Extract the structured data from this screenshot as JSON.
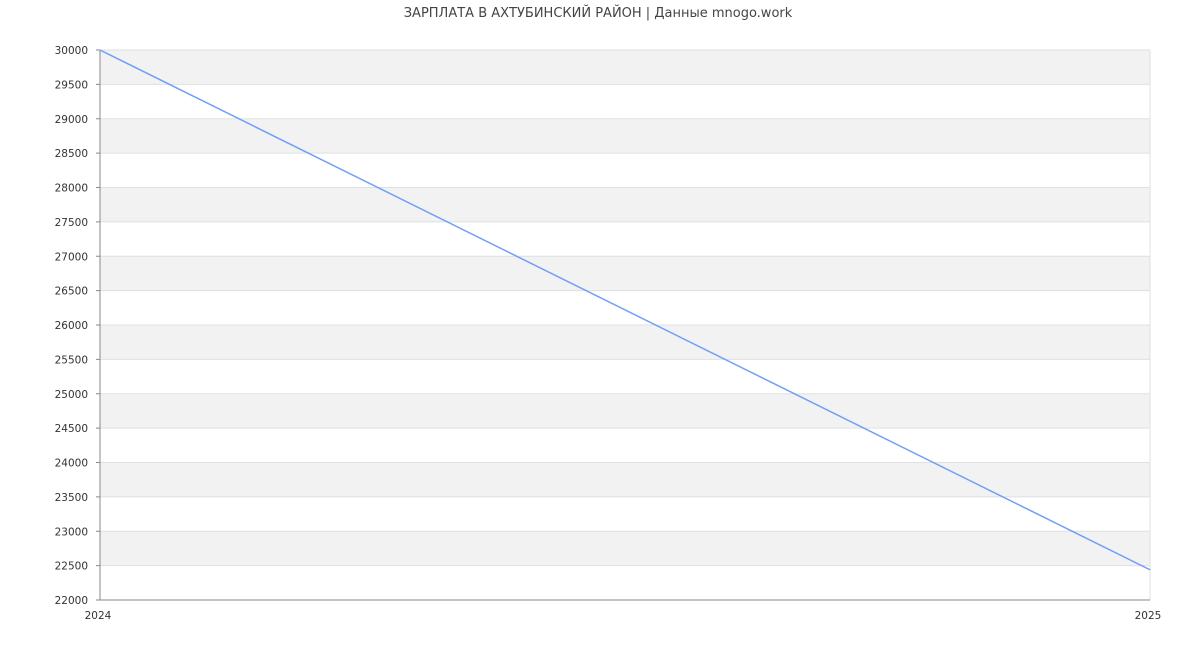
{
  "chart_data": {
    "type": "line",
    "title": "ЗАРПЛАТА В АХТУБИНСКИЙ РАЙОН | Данные mnogo.work",
    "xlabel": "",
    "ylabel": "",
    "x": [
      2024,
      2025
    ],
    "x_tick_labels": [
      "2024",
      "2025"
    ],
    "series": [
      {
        "values": [
          30000,
          22440
        ]
      }
    ],
    "ylim": [
      22000,
      30000
    ],
    "y_ticks": [
      22000,
      22500,
      23000,
      23500,
      24000,
      24500,
      25000,
      25500,
      26000,
      26500,
      27000,
      27500,
      28000,
      28500,
      29000,
      29500,
      30000
    ],
    "grid": true,
    "legend": "none",
    "colors": {
      "line": "#6f9ef8",
      "band": "#f2f2f2",
      "grid": "#e0e0e0",
      "axis": "#888888"
    }
  }
}
